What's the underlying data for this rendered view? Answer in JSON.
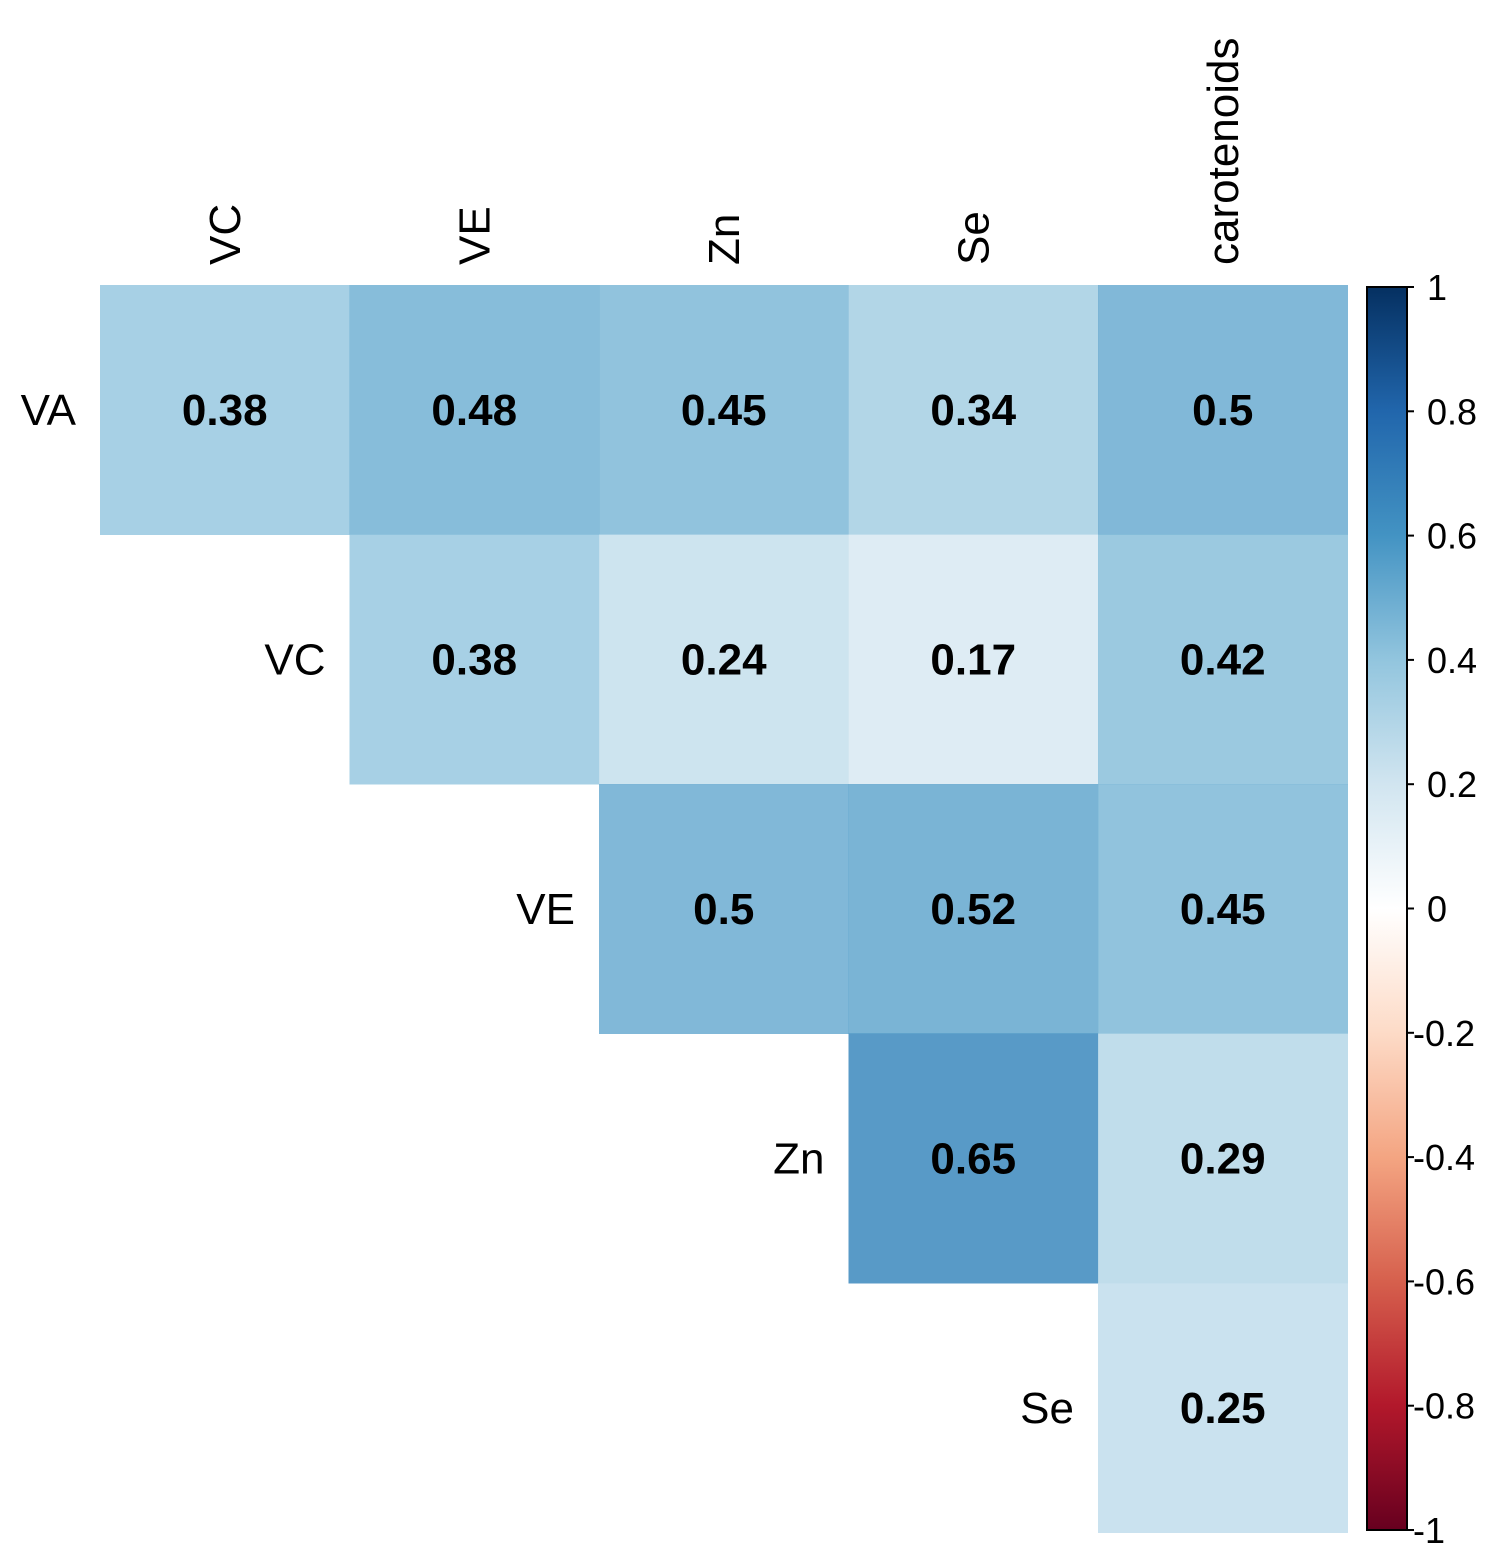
{
  "chart_data": {
    "type": "heatmap",
    "title": "",
    "subtitle": "",
    "description": "Upper-triangular correlation matrix",
    "row_labels": [
      "VA",
      "VC",
      "VE",
      "Zn",
      "Se"
    ],
    "col_labels": [
      "VC",
      "VE",
      "Zn",
      "Se",
      "carotenoids"
    ],
    "cells": [
      {
        "row": "VA",
        "col": "VC",
        "value": 0.38,
        "label": "0.38"
      },
      {
        "row": "VA",
        "col": "VE",
        "value": 0.48,
        "label": "0.48"
      },
      {
        "row": "VA",
        "col": "Zn",
        "value": 0.45,
        "label": "0.45"
      },
      {
        "row": "VA",
        "col": "Se",
        "value": 0.34,
        "label": "0.34"
      },
      {
        "row": "VA",
        "col": "carotenoids",
        "value": 0.5,
        "label": "0.5"
      },
      {
        "row": "VC",
        "col": "VE",
        "value": 0.38,
        "label": "0.38"
      },
      {
        "row": "VC",
        "col": "Zn",
        "value": 0.24,
        "label": "0.24"
      },
      {
        "row": "VC",
        "col": "Se",
        "value": 0.17,
        "label": "0.17"
      },
      {
        "row": "VC",
        "col": "carotenoids",
        "value": 0.42,
        "label": "0.42"
      },
      {
        "row": "VE",
        "col": "Zn",
        "value": 0.5,
        "label": "0.5"
      },
      {
        "row": "VE",
        "col": "Se",
        "value": 0.52,
        "label": "0.52"
      },
      {
        "row": "VE",
        "col": "carotenoids",
        "value": 0.45,
        "label": "0.45"
      },
      {
        "row": "Zn",
        "col": "Se",
        "value": 0.65,
        "label": "0.65"
      },
      {
        "row": "Zn",
        "col": "carotenoids",
        "value": 0.29,
        "label": "0.29"
      },
      {
        "row": "Se",
        "col": "carotenoids",
        "value": 0.25,
        "label": "0.25"
      }
    ],
    "colorbar": {
      "range": [
        -1,
        1
      ],
      "ticks": [
        1,
        0.8,
        0.6,
        0.4,
        0.2,
        0,
        -0.2,
        -0.4,
        -0.6,
        -0.8,
        -1
      ],
      "tick_labels": [
        "1",
        "0.8",
        "0.6",
        "0.4",
        "0.2",
        "0",
        "-0.2",
        "-0.4",
        "-0.6",
        "-0.8",
        "-1"
      ],
      "placement": "right",
      "colors": {
        "pos_1": "#053061",
        "pos_0_8": "#2166ac",
        "pos_0_6": "#4393c3",
        "pos_0_4": "#92c5de",
        "pos_0_2": "#d1e5f0",
        "zero": "#ffffff",
        "neg_0_2": "#fddbc7",
        "neg_0_4": "#f4a582",
        "neg_0_6": "#d6604d",
        "neg_0_8": "#b2182b",
        "neg_1": "#67001f"
      }
    },
    "grid": false
  }
}
